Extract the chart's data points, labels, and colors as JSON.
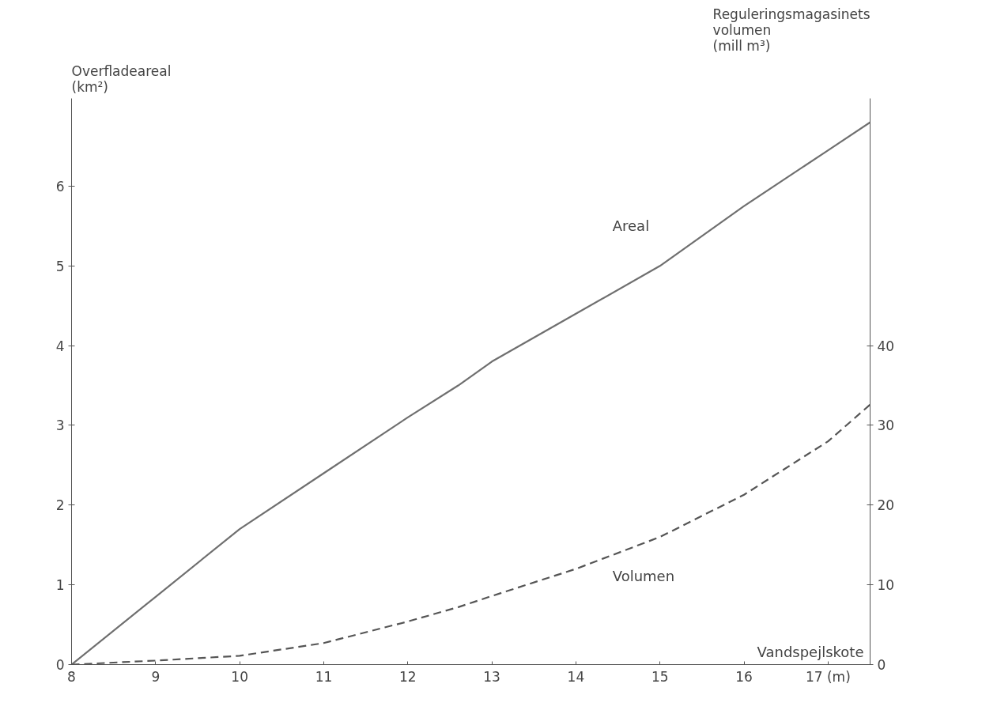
{
  "chart_data": {
    "type": "line",
    "xlabel": "Vandspejlskote",
    "ylabel": "Overfladeareal\n(km²)",
    "y2label": "Reguleringsmagasinets\nvolumen\n(mill m³)",
    "x": [
      8,
      9,
      10,
      11,
      12,
      12.6,
      13,
      14,
      15,
      16,
      17,
      17.5
    ],
    "series": [
      {
        "name": "Areal",
        "color": "#6f6f6f",
        "line_style": "solid",
        "values": [
          0,
          0.85,
          1.7,
          2.4,
          3.1,
          3.5,
          3.8,
          4.4,
          5.0,
          5.75,
          6.45,
          6.8
        ]
      },
      {
        "name": "Volumen",
        "color": "#555555",
        "line_style": "dashed",
        "axis": "y2",
        "values": [
          0,
          0.5,
          1.1,
          2.7,
          5.4,
          7.2,
          8.6,
          12.0,
          16.0,
          21.3,
          28.0,
          32.6
        ]
      }
    ],
    "xlim": [
      8,
      17.5
    ],
    "xticks": [
      8,
      9,
      10,
      11,
      12,
      13,
      14,
      15,
      16,
      {
        "value": 17,
        "label": "17 (m)"
      }
    ],
    "ylim": [
      0,
      7.1
    ],
    "yticks": [
      0,
      1,
      2,
      3,
      4,
      5,
      6
    ],
    "y2lim": [
      0,
      71
    ],
    "y2ticks": [
      0,
      10,
      20,
      30,
      40
    ],
    "grid": false
  }
}
